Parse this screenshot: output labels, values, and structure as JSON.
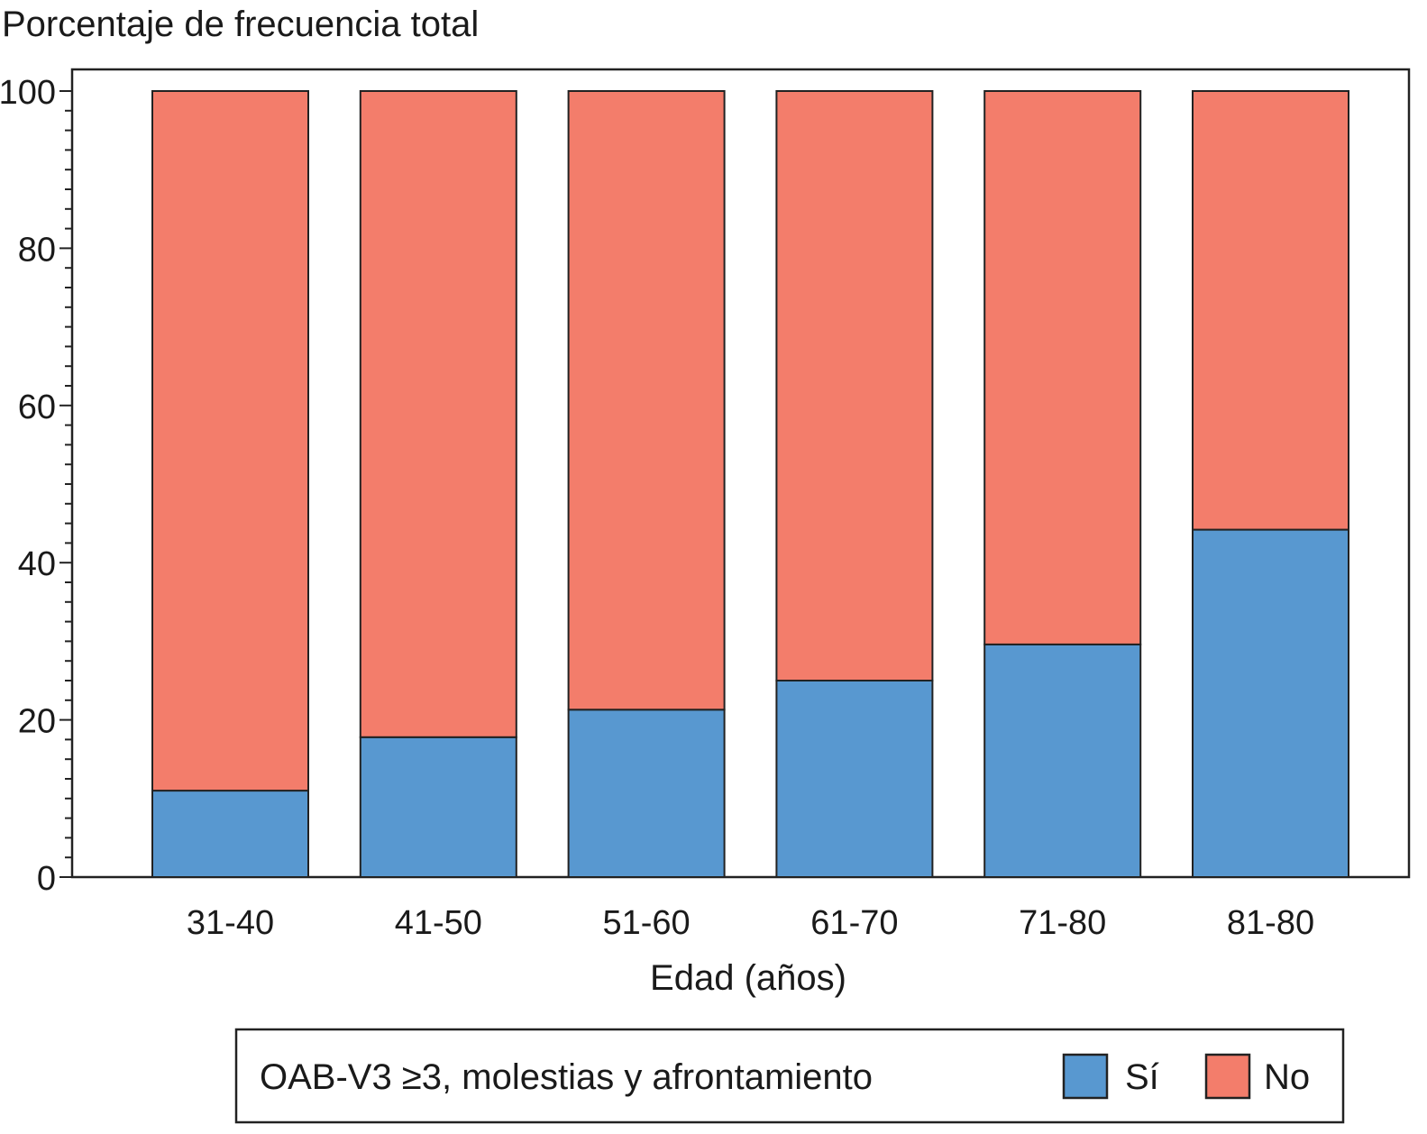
{
  "chart_data": {
    "type": "bar",
    "stacked": true,
    "title": "",
    "ylabel": "Porcentaje de frecuencia total",
    "xlabel": "Edad (años)",
    "ylim": [
      0,
      100
    ],
    "yticks": [
      0,
      20,
      40,
      60,
      80,
      100
    ],
    "grid": false,
    "categories": [
      "31-40",
      "41-50",
      "51-60",
      "61-70",
      "71-80",
      "81-80"
    ],
    "series": [
      {
        "name": "Sí",
        "color": "#5898d0",
        "values": [
          11,
          17.8,
          21.3,
          25,
          29.6,
          44.2
        ]
      },
      {
        "name": "No",
        "color": "#f37d6b",
        "values": [
          89,
          82.2,
          78.7,
          75,
          70.4,
          55.8
        ]
      }
    ],
    "legend": {
      "title": "OAB-V3 ≥3, molestias y afrontamiento",
      "placement": "bottom"
    }
  }
}
